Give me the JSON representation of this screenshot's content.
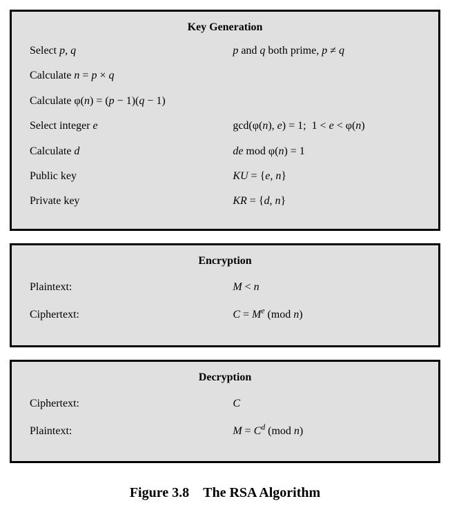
{
  "panels": [
    {
      "title": "Key Generation",
      "background_color": "#e0e0e0",
      "border_color": "#000000",
      "border_width": 3,
      "title_fontsize": 16,
      "row_fontsize": 16,
      "rows": [
        {
          "left_html": "Select <span class='it'>p</span>, <span class='it'>q</span>",
          "right_html": "<span class='it'>p</span> and <span class='it'>q</span> both prime, <span class='it'>p</span> &ne; <span class='it'>q</span>"
        },
        {
          "left_html": "Calculate <span class='it'>n</span> = <span class='it'>p</span> &times; <span class='it'>q</span>",
          "right_html": ""
        },
        {
          "left_html": "Calculate &phi;(<span class='it'>n</span>) = (<span class='it'>p</span> &minus; 1)(<span class='it'>q</span> &minus; 1)",
          "right_html": ""
        },
        {
          "left_html": "Select integer <span class='it'>e</span>",
          "right_html": "gcd(&phi;(<span class='it'>n</span>), <span class='it'>e</span>) = 1; &nbsp;1 &lt; <span class='it'>e</span> &lt; &phi;(<span class='it'>n</span>)"
        },
        {
          "left_html": "Calculate <span class='it'>d</span>",
          "right_html": "<span class='it'>de</span> mod &phi;(<span class='it'>n</span>) = 1"
        },
        {
          "left_html": "Public key",
          "right_html": "<span class='it'>KU</span> = {<span class='it'>e</span>, <span class='it'>n</span>}"
        },
        {
          "left_html": "Private key",
          "right_html": "<span class='it'>KR</span> = {<span class='it'>d</span>, <span class='it'>n</span>}"
        }
      ]
    },
    {
      "title": "Encryption",
      "background_color": "#e0e0e0",
      "border_color": "#000000",
      "border_width": 3,
      "title_fontsize": 16,
      "row_fontsize": 16,
      "rows": [
        {
          "left_html": "Plaintext:",
          "right_html": "<span class='it'>M</span> &lt; <span class='it'>n</span>"
        },
        {
          "left_html": "Ciphertext:",
          "right_html": "<span class='it'>C</span> = <span class='it'>M<sup>e</sup></span> (mod <span class='it'>n</span>)"
        }
      ]
    },
    {
      "title": "Decryption",
      "background_color": "#e0e0e0",
      "border_color": "#000000",
      "border_width": 3,
      "title_fontsize": 16,
      "row_fontsize": 16,
      "rows": [
        {
          "left_html": "Ciphertext:",
          "right_html": "<span class='it'>C</span>"
        },
        {
          "left_html": "Plaintext:",
          "right_html": "<span class='it'>M</span> = <span class='it'>C<sup>d</sup></span> (mod <span class='it'>n</span>)"
        }
      ]
    }
  ],
  "caption": "Figure 3.8 The RSA Algorithm",
  "caption_fontsize": 20
}
